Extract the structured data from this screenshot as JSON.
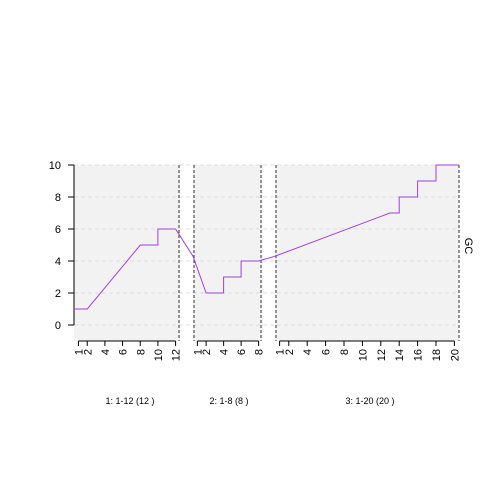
{
  "chart_data": {
    "type": "line",
    "ylabel": "GC",
    "ylim": [
      -1,
      10
    ],
    "yticks": [
      "0",
      "2",
      "4",
      "6",
      "8",
      "10"
    ],
    "grid": "horizontal dashed",
    "line_color": "#a040e0",
    "panel_background": "#f2f2f2",
    "segments": [
      {
        "label": "1: 1-12 (12 )",
        "xlim": [
          0.5,
          12.5
        ],
        "xticks": [
          "1",
          "2",
          "4",
          "6",
          "8",
          "10",
          "12"
        ],
        "x": [
          0.5,
          2,
          8,
          10,
          10,
          12
        ],
        "y": [
          1,
          1,
          5,
          5,
          6,
          6
        ]
      },
      {
        "label": "2: 1-8 (8 )",
        "xlim": [
          0.5,
          8.5
        ],
        "xticks": [
          "1",
          "2",
          "4",
          "6",
          "8"
        ],
        "x": [
          0.5,
          2,
          4,
          4,
          6,
          6,
          8
        ],
        "y": [
          4.3,
          2,
          2,
          3,
          3,
          4,
          4
        ]
      },
      {
        "label": "3: 1-20 (20 )",
        "xlim": [
          0.5,
          20.5
        ],
        "xticks": [
          "1",
          "2",
          "4",
          "6",
          "8",
          "10",
          "12",
          "14",
          "16",
          "18",
          "20"
        ],
        "x": [
          0.5,
          13,
          14,
          14,
          16,
          16,
          18,
          18,
          20,
          20.5
        ],
        "y": [
          4.3,
          7,
          7,
          8,
          8,
          9,
          9,
          10,
          10,
          10
        ]
      }
    ]
  }
}
